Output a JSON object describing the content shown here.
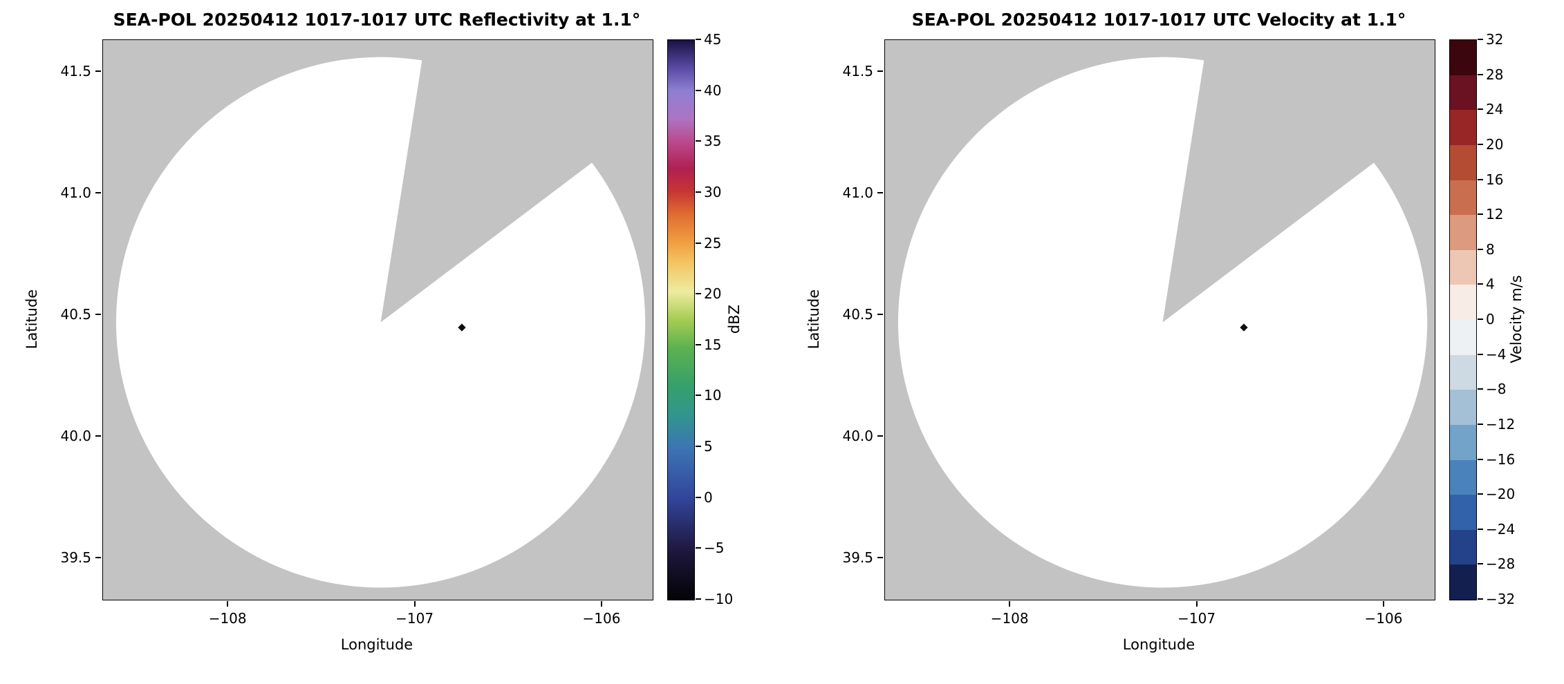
{
  "chart_data": [
    {
      "type": "heatmap",
      "title": "SEA-POL 20250412 1017-1017 UTC Reflectivity at 1.1°",
      "xlabel": "Longitude",
      "ylabel": "Latitude",
      "xlim": [
        -108.67,
        -105.73
      ],
      "ylim": [
        39.33,
        41.63
      ],
      "xticks": [
        -108,
        -107,
        -106
      ],
      "xtick_labels": [
        "−108",
        "−107",
        "−106"
      ],
      "yticks": [
        41.5,
        41.0,
        40.5,
        40.0,
        39.5
      ],
      "ytick_labels": [
        "41.5",
        "41.0",
        "40.5",
        "40.0",
        "39.5"
      ],
      "grid": false,
      "plot_background": "#c3c3c3",
      "colorbar": {
        "label": "dBZ",
        "min": -10,
        "max": 45,
        "type": "continuous",
        "ticks": [
          45,
          40,
          35,
          30,
          25,
          20,
          15,
          10,
          5,
          0,
          -5,
          -10
        ],
        "tick_labels": [
          "45",
          "40",
          "35",
          "30",
          "25",
          "20",
          "15",
          "10",
          "5",
          "0",
          "−5",
          "−10"
        ],
        "gradient_stops": [
          {
            "pos": 0,
            "color": "#030305"
          },
          {
            "pos": 9,
            "color": "#1f1840"
          },
          {
            "pos": 18,
            "color": "#31459a"
          },
          {
            "pos": 27,
            "color": "#3c74b4"
          },
          {
            "pos": 33,
            "color": "#31968e"
          },
          {
            "pos": 38,
            "color": "#35a06b"
          },
          {
            "pos": 45,
            "color": "#5cb24f"
          },
          {
            "pos": 50,
            "color": "#a5cc52"
          },
          {
            "pos": 55,
            "color": "#eeeb9f"
          },
          {
            "pos": 60,
            "color": "#f3c763"
          },
          {
            "pos": 64,
            "color": "#f09d40"
          },
          {
            "pos": 69,
            "color": "#e06a31"
          },
          {
            "pos": 73,
            "color": "#c63533"
          },
          {
            "pos": 77,
            "color": "#b02052"
          },
          {
            "pos": 82,
            "color": "#bb4b8f"
          },
          {
            "pos": 86,
            "color": "#ad74c4"
          },
          {
            "pos": 91,
            "color": "#8d7fd2"
          },
          {
            "pos": 95,
            "color": "#5a4aa5"
          },
          {
            "pos": 100,
            "color": "#191243"
          }
        ]
      },
      "scan": {
        "center_lon": -107.185,
        "center_lat": 40.47,
        "radius_lon_deg": 1.415,
        "radius_lat_deg": 1.09,
        "missing_sector_azimuth_deg": [
          9,
          53
        ],
        "coverage_color": "#ffffff"
      },
      "echoes": [
        {
          "lon": -106.75,
          "lat": 40.45,
          "color": "#0e0e14"
        }
      ]
    },
    {
      "type": "heatmap",
      "title": "SEA-POL 20250412 1017-1017 UTC Velocity at 1.1°",
      "xlabel": "Longitude",
      "ylabel": "Latitude",
      "xlim": [
        -108.67,
        -105.73
      ],
      "ylim": [
        39.33,
        41.63
      ],
      "xticks": [
        -108,
        -107,
        -106
      ],
      "xtick_labels": [
        "−108",
        "−107",
        "−106"
      ],
      "yticks": [
        41.5,
        41.0,
        40.5,
        40.0,
        39.5
      ],
      "ytick_labels": [
        "41.5",
        "41.0",
        "40.5",
        "40.0",
        "39.5"
      ],
      "grid": false,
      "plot_background": "#c3c3c3",
      "colorbar": {
        "label": "Velocity m/s",
        "min": -32,
        "max": 32,
        "type": "discrete",
        "ticks": [
          32,
          28,
          24,
          20,
          16,
          12,
          8,
          4,
          0,
          -4,
          -8,
          -12,
          -16,
          -20,
          -24,
          -28,
          -32
        ],
        "tick_labels": [
          "32",
          "28",
          "24",
          "20",
          "16",
          "12",
          "8",
          "4",
          "0",
          "−4",
          "−8",
          "−12",
          "−16",
          "−20",
          "−24",
          "−28",
          "−32"
        ],
        "segment_colors_top_to_bottom": [
          "#3c060f",
          "#6b1222",
          "#992626",
          "#b44b33",
          "#c96f50",
          "#dc9a7e",
          "#edc7b4",
          "#f8ece6",
          "#eef1f3",
          "#cdd9e3",
          "#a3c0d6",
          "#74a3c9",
          "#4a82ba",
          "#3263aa",
          "#24428a",
          "#13204f"
        ]
      },
      "scan": {
        "center_lon": -107.185,
        "center_lat": 40.47,
        "radius_lon_deg": 1.415,
        "radius_lat_deg": 1.09,
        "missing_sector_azimuth_deg": [
          9,
          53
        ],
        "coverage_color": "#ffffff"
      },
      "echoes": [
        {
          "lon": -106.75,
          "lat": 40.45,
          "color": "#0e0e14"
        }
      ]
    }
  ]
}
